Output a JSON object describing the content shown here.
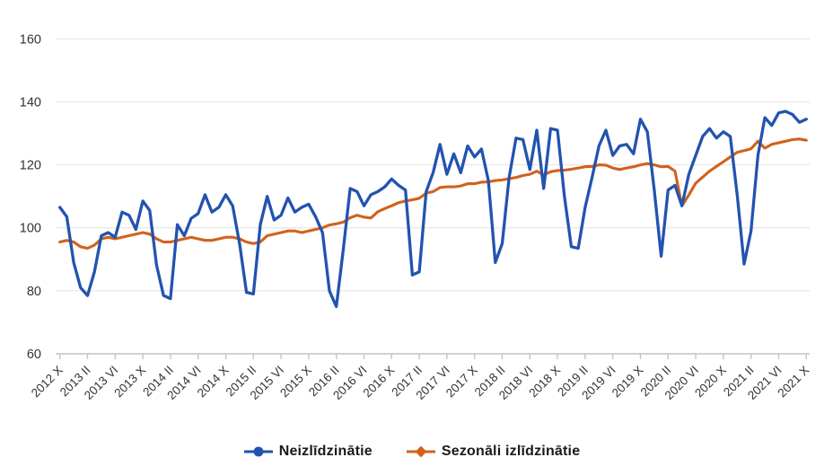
{
  "chart_data": {
    "type": "line",
    "title": "",
    "xlabel": "",
    "ylabel": "",
    "ylim": [
      60,
      160
    ],
    "grid": "horizontal",
    "legend_position": "bottom-center",
    "y_ticks": [
      60,
      80,
      100,
      120,
      140,
      160
    ],
    "x_tick_labels": [
      "2012 X",
      "2013 II",
      "2013 VI",
      "2013 X",
      "2014 II",
      "2014 VI",
      "2014 X",
      "2015 II",
      "2015 VI",
      "2015 X",
      "2016 II",
      "2016 VI",
      "2016 X",
      "2017 II",
      "2017 VI",
      "2017 X",
      "2018 II",
      "2018 VI",
      "2018 X",
      "2019 II",
      "2019 VI",
      "2019 X",
      "2020 II",
      "2020 VI",
      "2020 X",
      "2021 II",
      "2021 VI",
      "2021 X"
    ],
    "x_tick_every_points": 4,
    "x_start": "2012 X",
    "x_end": "2021 X",
    "frequency": "monthly",
    "series": [
      {
        "name": "Neizlīdzinātie",
        "color": "#2253b0",
        "marker": "circle",
        "values": [
          106.5,
          103.5,
          89,
          81,
          78.5,
          86,
          97.5,
          98.5,
          97,
          105,
          104,
          99.5,
          108.5,
          105.5,
          88,
          78.5,
          77.5,
          101,
          97.5,
          103,
          104.5,
          110.5,
          105,
          106.5,
          110.5,
          107,
          95,
          79.5,
          79,
          101,
          110,
          102.5,
          104,
          109.5,
          105,
          106.5,
          107.5,
          103.5,
          98.5,
          80,
          75,
          93,
          112.5,
          111.5,
          107,
          110.5,
          111.5,
          113,
          115.5,
          113.5,
          112,
          85,
          86,
          111.5,
          117.5,
          126.5,
          117,
          123.5,
          117.5,
          126,
          122.5,
          125,
          115,
          89,
          95,
          116,
          128.5,
          128,
          118.5,
          131,
          112.5,
          131.5,
          131,
          110,
          94,
          93.5,
          106.5,
          116,
          126,
          131,
          123,
          126,
          126.5,
          123.5,
          134.5,
          130.5,
          112,
          91,
          112,
          113.5,
          107,
          117,
          123,
          129,
          131.5,
          128.5,
          130.5,
          129,
          110.5,
          88.5,
          99,
          123,
          135,
          132.5,
          136.5,
          137,
          136,
          133.5,
          134.5
        ]
      },
      {
        "name": "Sezonāli izlīdzinātie",
        "color": "#d2611c",
        "marker": "diamond",
        "values": [
          95.5,
          96,
          95.5,
          94,
          93.5,
          94.5,
          96.5,
          97,
          96.5,
          97,
          97.5,
          98,
          98.5,
          98,
          96.5,
          95.5,
          95.5,
          96,
          96.5,
          97,
          96.5,
          96,
          96,
          96.5,
          97,
          97,
          96.5,
          95.5,
          95,
          95.5,
          97.5,
          98,
          98.5,
          99,
          99,
          98.5,
          99,
          99.5,
          100,
          100.9,
          101.3,
          101.8,
          103.2,
          104,
          103.4,
          103.1,
          105.1,
          106.1,
          107,
          108,
          108.5,
          108.9,
          109.4,
          111,
          111.5,
          112.8,
          113,
          113,
          113.3,
          114,
          114,
          114.5,
          114.6,
          115,
          115.2,
          115.6,
          116,
          116.6,
          117,
          118,
          116.8,
          117.8,
          118.2,
          118.3,
          118.6,
          119,
          119.4,
          119.5,
          120,
          119.9,
          119,
          118.5,
          119,
          119.4,
          120,
          120.4,
          120,
          119.4,
          119.5,
          118,
          107,
          110.4,
          114.2,
          116.1,
          118,
          119.5,
          121,
          122.5,
          124,
          124.5,
          125.1,
          127.5,
          125.3,
          126.5,
          127,
          127.5,
          128,
          128.2,
          127.8
        ]
      }
    ]
  },
  "style": {
    "background": "#ffffff",
    "grid_color": "#e9e9e9",
    "axis_color": "#c4c4c4",
    "tick_label_color": "#333333",
    "legend_text_color": "#1a1a1a"
  }
}
